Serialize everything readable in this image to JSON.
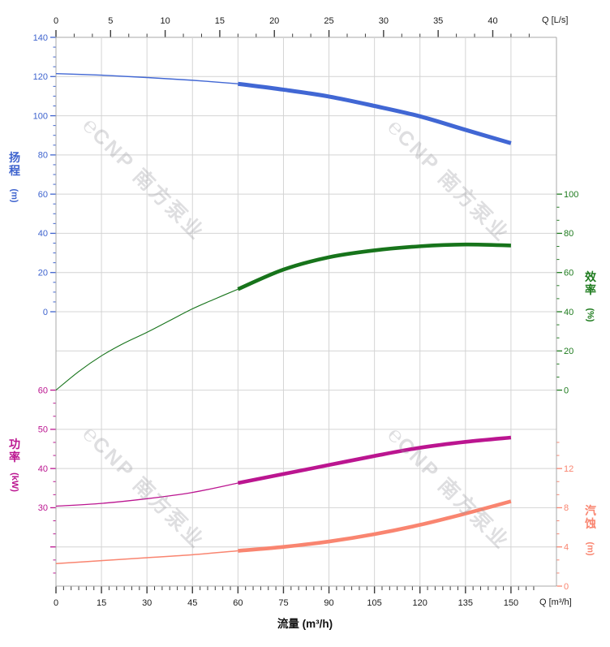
{
  "watermark": {
    "logo_glyph": "℮",
    "text": "CNP 南方泵业"
  },
  "chart_data": {
    "type": "line",
    "title": "",
    "x_axis_top": {
      "unit_label": "Q [L/s]",
      "tick_labels": [
        0,
        5,
        10,
        15,
        20,
        25,
        30,
        35,
        40
      ],
      "major_step": 5,
      "minor_step": 1.6667,
      "minor_range": [
        0,
        43.34
      ]
    },
    "x_axis_bottom": {
      "unit_label": "Q [m³/h]",
      "title": "流量 (m³/h)",
      "tick_labels": [
        0,
        15,
        30,
        45,
        60,
        75,
        90,
        105,
        120,
        135,
        150
      ],
      "major_step": 15,
      "minor_step": 2.5,
      "minor_range": [
        0,
        157.5
      ],
      "range": [
        0,
        165
      ]
    },
    "y_axes": {
      "head": {
        "title": "扬程",
        "unit": "(m)",
        "color": "#3E63CE",
        "side": "left",
        "tick_labels": [
          140,
          120,
          100,
          80,
          60,
          40,
          20,
          0
        ],
        "unlabeled_majors": [],
        "ref_value": 140,
        "ref_line": 0,
        "units_per_line": 20,
        "minor_step": 5,
        "minor_range": [
          0,
          140
        ]
      },
      "efficiency": {
        "title": "效率",
        "unit": "(%)",
        "color": "#1E7B1E",
        "side": "right",
        "tick_labels": [
          100,
          80,
          60,
          40,
          20,
          0
        ],
        "unlabeled_majors": [],
        "ref_value": 0,
        "ref_line": 9,
        "units_per_line": 20,
        "minor_step": 6.6667,
        "minor_range": [
          0,
          100
        ]
      },
      "power": {
        "title": "功率",
        "unit": "(kW)",
        "color": "#BB1590",
        "side": "left",
        "tick_labels": [
          60,
          50,
          40,
          30
        ],
        "unlabeled_majors": [
          20
        ],
        "ref_value": 60,
        "ref_line": 9,
        "units_per_line": 10,
        "minor_step": 3.3333,
        "minor_range": [
          13.33,
          60
        ]
      },
      "npsh": {
        "title": "汽蚀",
        "unit": "(m)",
        "color": "#F98570",
        "side": "right",
        "tick_labels": [
          12,
          8,
          4,
          0
        ],
        "unlabeled_majors": [],
        "ref_value": 0,
        "ref_line": 14,
        "units_per_line": 4,
        "minor_step": 1.3333,
        "minor_range": [
          0,
          14.67
        ]
      }
    },
    "series": [
      {
        "name": "head-curve",
        "axis": "head",
        "color": "#4167D4",
        "split_q": 60,
        "points": [
          [
            0,
            121.5
          ],
          [
            15,
            120.7
          ],
          [
            30,
            119.5
          ],
          [
            45,
            118.1
          ],
          [
            60,
            116.3
          ],
          [
            75,
            113.3
          ],
          [
            90,
            109.8
          ],
          [
            105,
            105.0
          ],
          [
            120,
            99.7
          ],
          [
            135,
            92.8
          ],
          [
            150,
            86.0
          ]
        ]
      },
      {
        "name": "efficiency-curve",
        "axis": "efficiency",
        "color": "#17741B",
        "split_q": 60,
        "points": [
          [
            0,
            0
          ],
          [
            7.5,
            9.5
          ],
          [
            15,
            17.5
          ],
          [
            22.5,
            24.0
          ],
          [
            30,
            29.5
          ],
          [
            37.5,
            35.5
          ],
          [
            45,
            41.5
          ],
          [
            52.5,
            46.6
          ],
          [
            60,
            51.5
          ],
          [
            75,
            61.5
          ],
          [
            90,
            67.8
          ],
          [
            105,
            71.3
          ],
          [
            120,
            73.4
          ],
          [
            135,
            74.3
          ],
          [
            150,
            73.8
          ]
        ]
      },
      {
        "name": "power-curve",
        "axis": "power",
        "color": "#BB1590",
        "split_q": 60,
        "points": [
          [
            0,
            30.4
          ],
          [
            15,
            31.1
          ],
          [
            30,
            32.3
          ],
          [
            45,
            33.9
          ],
          [
            60,
            36.3
          ],
          [
            75,
            38.6
          ],
          [
            90,
            40.9
          ],
          [
            105,
            43.2
          ],
          [
            120,
            45.3
          ],
          [
            135,
            46.8
          ],
          [
            150,
            47.9
          ]
        ]
      },
      {
        "name": "npsh-curve",
        "axis": "npsh",
        "color": "#F98570",
        "split_q": 60,
        "points": [
          [
            0,
            2.3
          ],
          [
            15,
            2.6
          ],
          [
            30,
            2.9
          ],
          [
            45,
            3.2
          ],
          [
            60,
            3.6
          ],
          [
            75,
            4.0
          ],
          [
            90,
            4.55
          ],
          [
            105,
            5.3
          ],
          [
            120,
            6.25
          ],
          [
            135,
            7.4
          ],
          [
            150,
            8.65
          ]
        ]
      }
    ],
    "legend": null,
    "grid": "on"
  }
}
